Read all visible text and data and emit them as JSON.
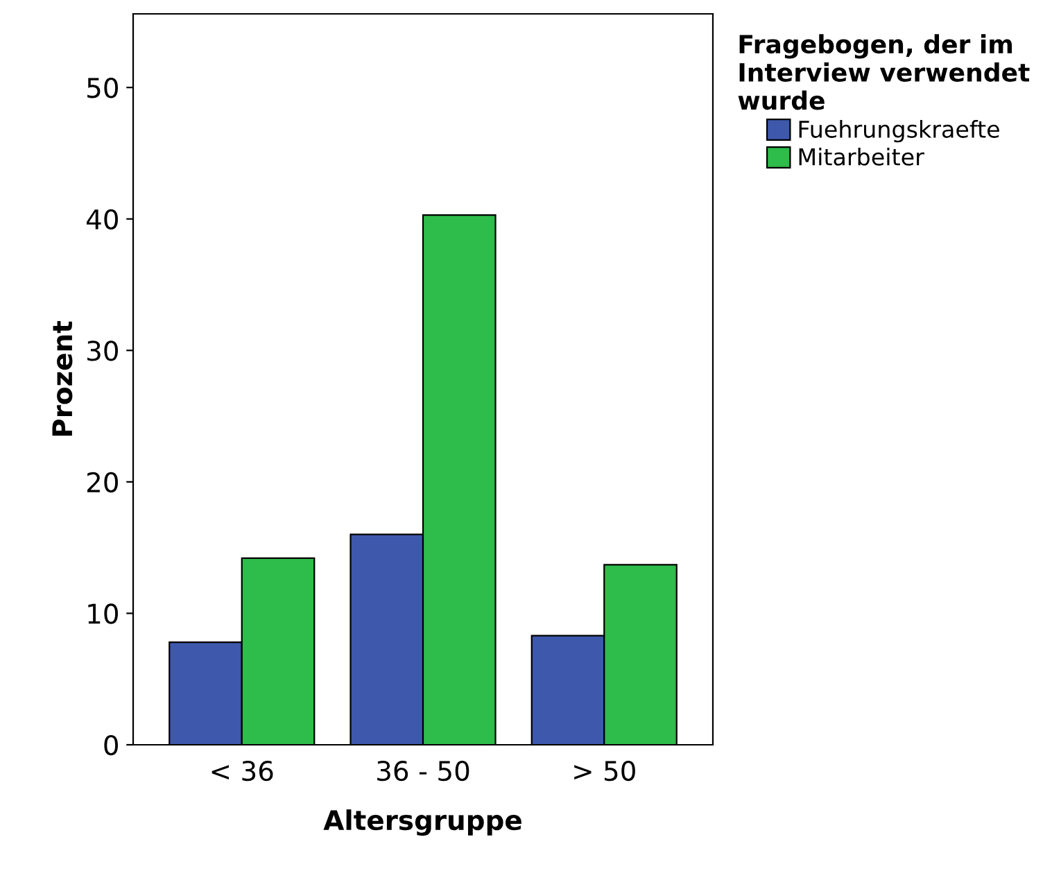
{
  "chart_data": {
    "type": "bar",
    "xlabel": "Altersgruppe",
    "ylabel": "Prozent",
    "legend_title": "Fragebogen, der im\nInterview verwendet\nwurde",
    "categories": [
      "< 36",
      "36 - 50",
      "> 50"
    ],
    "series": [
      {
        "name": "Fuehrungskraefte",
        "color": "#3e58ac",
        "values": [
          7.8,
          16.0,
          8.3
        ]
      },
      {
        "name": "Mitarbeiter",
        "color": "#2ebc4a",
        "values": [
          14.2,
          40.3,
          13.7
        ]
      }
    ],
    "ylim": [
      0,
      55.6
    ],
    "yticks": [
      0,
      10,
      20,
      30,
      40,
      50
    ],
    "grid": false,
    "legend": "top right"
  }
}
